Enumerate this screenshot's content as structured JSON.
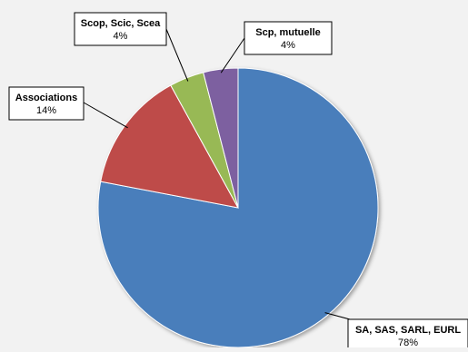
{
  "chart_data": {
    "type": "pie",
    "start_angle_deg": 0,
    "direction": "clockwise",
    "slices": [
      {
        "label": "SA, SAS, SARL, EURL",
        "value": 78,
        "value_label": "78%",
        "color": "#4a7ebb"
      },
      {
        "label": "Associations",
        "value": 14,
        "value_label": "14%",
        "color": "#be4b48"
      },
      {
        "label": "Scop, Scic, Scea",
        "value": 4,
        "value_label": "4%",
        "color": "#98b954"
      },
      {
        "label": "Scp, mutuelle",
        "value": 4,
        "value_label": "4%",
        "color": "#7d60a0"
      }
    ],
    "legend": "none",
    "data_labels": "callout"
  }
}
